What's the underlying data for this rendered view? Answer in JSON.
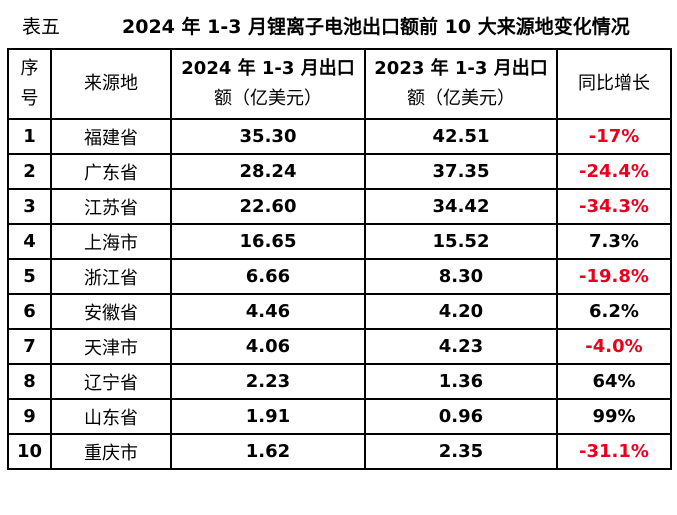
{
  "caption": {
    "label": "表五",
    "title": "2024 年 1-3 月锂离子电池出口额前 10 大来源地变化情况"
  },
  "headers": {
    "index_line1": "序",
    "index_line2": "号",
    "source": "来源地",
    "col2024_line1": "2024 年 1-3 月出口",
    "col2024_line2": "额（亿美元）",
    "col2023_line1": "2023 年 1-3 月出口",
    "col2023_line2": "额（亿美元）",
    "growth": "同比增长"
  },
  "rows": [
    {
      "index": "1",
      "source": "福建省",
      "v2024": "35.30",
      "v2023": "42.51",
      "growth": "-17%",
      "negative": true
    },
    {
      "index": "2",
      "source": "广东省",
      "v2024": "28.24",
      "v2023": "37.35",
      "growth": "-24.4%",
      "negative": true
    },
    {
      "index": "3",
      "source": "江苏省",
      "v2024": "22.60",
      "v2023": "34.42",
      "growth": "-34.3%",
      "negative": true
    },
    {
      "index": "4",
      "source": "上海市",
      "v2024": "16.65",
      "v2023": "15.52",
      "growth": "7.3%",
      "negative": false
    },
    {
      "index": "5",
      "source": "浙江省",
      "v2024": "6.66",
      "v2023": "8.30",
      "growth": "-19.8%",
      "negative": true
    },
    {
      "index": "6",
      "source": "安徽省",
      "v2024": "4.46",
      "v2023": "4.20",
      "growth": "6.2%",
      "negative": false
    },
    {
      "index": "7",
      "source": "天津市",
      "v2024": "4.06",
      "v2023": "4.23",
      "growth": "-4.0%",
      "negative": true
    },
    {
      "index": "8",
      "source": "辽宁省",
      "v2024": "2.23",
      "v2023": "1.36",
      "growth": "64%",
      "negative": false
    },
    {
      "index": "9",
      "source": "山东省",
      "v2024": "1.91",
      "v2023": "0.96",
      "growth": "99%",
      "negative": false
    },
    {
      "index": "10",
      "source": "重庆市",
      "v2024": "1.62",
      "v2023": "2.35",
      "growth": "-31.1%",
      "negative": true
    }
  ],
  "colors": {
    "negative": "#e8001e",
    "text": "#000000"
  }
}
